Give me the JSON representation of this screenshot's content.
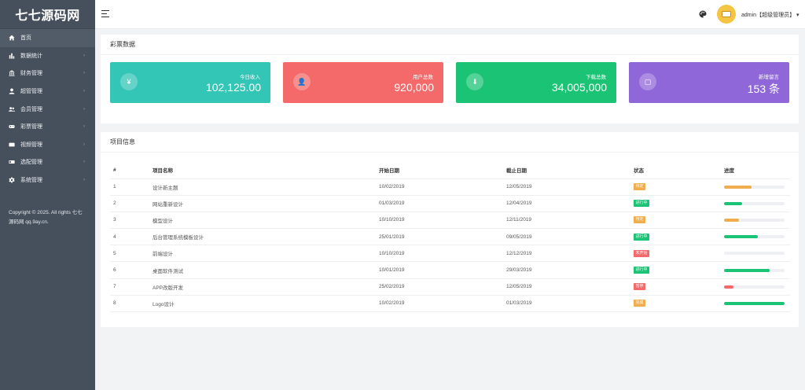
{
  "logo": "七七源码网",
  "sidebar": {
    "items": [
      {
        "label": "首页",
        "icon": "home-icon",
        "arrow": false,
        "active": true
      },
      {
        "label": "数据统计",
        "icon": "bar-chart-icon",
        "arrow": true
      },
      {
        "label": "财务管理",
        "icon": "bank-icon",
        "arrow": true
      },
      {
        "label": "超管管理",
        "icon": "user-icon",
        "arrow": true
      },
      {
        "label": "会员管理",
        "icon": "users-icon",
        "arrow": true
      },
      {
        "label": "彩票管理",
        "icon": "gamepad-icon",
        "arrow": true
      },
      {
        "label": "视频管理",
        "icon": "video-icon",
        "arrow": true
      },
      {
        "label": "选配管理",
        "icon": "tag-icon",
        "arrow": true
      },
      {
        "label": "系统管理",
        "icon": "gear-icon",
        "arrow": true
      }
    ],
    "copyright": "Copyright © 2025. All rights 七七源码网 qq.9ay.cn."
  },
  "header": {
    "user": "admin【超级管理员】",
    "dropdown_glyph": "▾"
  },
  "stats_panel": {
    "title": "彩票数据",
    "cards": [
      {
        "label": "今日收入",
        "value": "102,125.00",
        "icon": "yen-icon",
        "glyph": "¥",
        "color": "#33c5b6"
      },
      {
        "label": "用户总数",
        "value": "920,000",
        "icon": "user-icon",
        "glyph": "👤",
        "color": "#f46a6a"
      },
      {
        "label": "下载总数",
        "value": "34,005,000",
        "icon": "download-icon",
        "glyph": "⬇",
        "color": "#1bc374"
      },
      {
        "label": "新增留言",
        "value": "153 条",
        "icon": "message-icon",
        "glyph": "▢",
        "color": "#9067d9"
      }
    ]
  },
  "projects_panel": {
    "title": "项目信息",
    "columns": [
      "#",
      "项目名称",
      "开始日期",
      "截止日期",
      "状态",
      "进度"
    ],
    "rows": [
      {
        "no": "1",
        "name": "设计新主题",
        "start": "10/02/2019",
        "end": "12/05/2019",
        "status": "待定",
        "status_color": "#f0ad4e",
        "progress": 0.46,
        "bar_color": "#f0ad4e"
      },
      {
        "no": "2",
        "name": "网站重新设计",
        "start": "01/03/2019",
        "end": "12/04/2019",
        "status": "进行中",
        "status_color": "#1bc374",
        "progress": 0.3,
        "bar_color": "#1bc374"
      },
      {
        "no": "3",
        "name": "模型设计",
        "start": "10/10/2019",
        "end": "12/11/2019",
        "status": "待定",
        "status_color": "#f0ad4e",
        "progress": 0.25,
        "bar_color": "#f0ad4e"
      },
      {
        "no": "4",
        "name": "后台管理系统模板设计",
        "start": "25/01/2019",
        "end": "09/05/2019",
        "status": "进行中",
        "status_color": "#1bc374",
        "progress": 0.56,
        "bar_color": "#1bc374"
      },
      {
        "no": "5",
        "name": "前端设计",
        "start": "10/10/2019",
        "end": "12/12/2019",
        "status": "未开始",
        "status_color": "#f46a6a",
        "progress": 0.0,
        "bar_color": "#f46a6a"
      },
      {
        "no": "6",
        "name": "桌面软件测试",
        "start": "10/01/2019",
        "end": "29/03/2019",
        "status": "进行中",
        "status_color": "#1bc374",
        "progress": 0.75,
        "bar_color": "#1bc374"
      },
      {
        "no": "7",
        "name": "APP改版开发",
        "start": "25/02/2019",
        "end": "12/05/2019",
        "status": "暂停",
        "status_color": "#f46a6a",
        "progress": 0.15,
        "bar_color": "#f46a6a"
      },
      {
        "no": "8",
        "name": "Logo设计",
        "start": "10/02/2019",
        "end": "01/03/2019",
        "status": "完成",
        "status_color": "#f0ad4e",
        "progress": 1.0,
        "bar_color": "#1bc374"
      }
    ]
  }
}
